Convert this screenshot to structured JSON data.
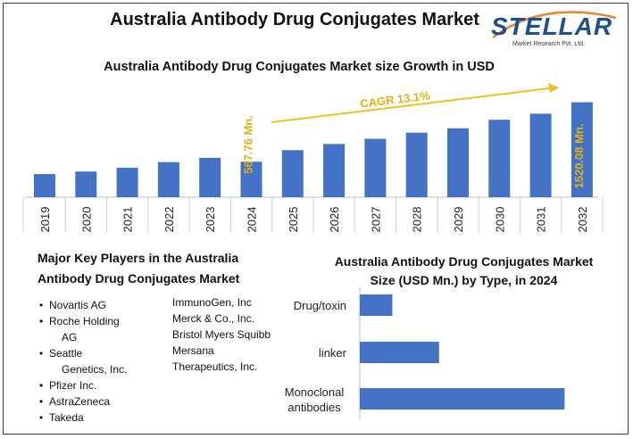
{
  "title": "Australia Antibody Drug Conjugates Market",
  "logo": {
    "name": "STELLAR",
    "tagline": "Market Research Pvt. Ltd."
  },
  "chart_data": [
    {
      "type": "bar",
      "title": "Australia Antibody Drug Conjugates Market size Growth in USD",
      "categories": [
        "2019",
        "2020",
        "2021",
        "2022",
        "2023",
        "2024",
        "2025",
        "2026",
        "2027",
        "2028",
        "2029",
        "2030",
        "2031",
        "2032"
      ],
      "values": [
        370,
        411,
        471,
        561,
        630,
        567.76,
        753,
        852,
        935,
        1033,
        1104,
        1240,
        1337,
        1520.08
      ],
      "annotations": {
        "cagr": "CAGR 13.1%",
        "label_2024": "567.76 Mn.",
        "label_2032": "1520.08 Mn."
      },
      "ylim": [
        0,
        1800
      ],
      "grid": false,
      "color": "#4472C4"
    },
    {
      "type": "bar",
      "orientation": "horizontal",
      "title": "Australia Antibody Drug Conjugates Market Size (USD Mn.) by Type, in 2024",
      "categories": [
        "Drug/toxin",
        "linker",
        "Monoclonal antibodies"
      ],
      "values": [
        57,
        139,
        359
      ],
      "xlim": [
        0,
        360
      ],
      "grid": false,
      "color": "#4472C4"
    }
  ],
  "players": {
    "heading": "Major Key Players in the Australia Antibody Drug Conjugates Market",
    "col1": [
      {
        "line1": "Novartis AG",
        "line2": ""
      },
      {
        "line1": "Roche Holding",
        "line2": "AG"
      },
      {
        "line1": "Seattle",
        "line2": "Genetics, Inc."
      },
      {
        "line1": "Pfizer Inc.",
        "line2": ""
      },
      {
        "line1": "AstraZeneca",
        "line2": ""
      },
      {
        "line1": "Takeda",
        "line2": ""
      }
    ],
    "col2": [
      "ImmunoGen, Inc",
      "Merck & Co., Inc.",
      "Bristol Myers Squibb",
      "Mersana Therapeutics, Inc."
    ]
  },
  "type_chart_labels": [
    "Drug/toxin",
    "linker",
    "Monoclonal",
    "antibodies"
  ]
}
